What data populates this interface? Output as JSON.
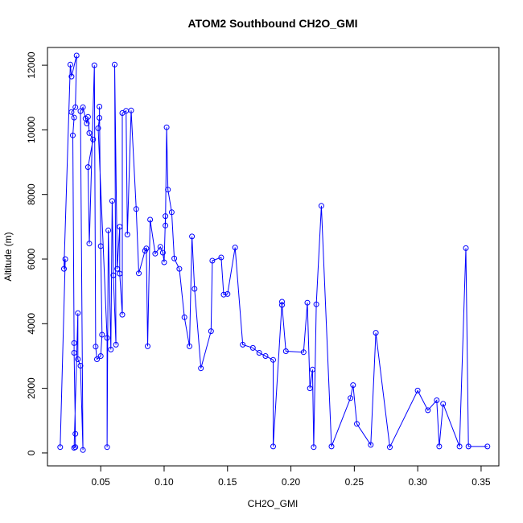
{
  "chart_data": {
    "type": "line",
    "title": "ATOM2 Southbound CH2O_GMI",
    "xlabel": "CH2O_GMI",
    "ylabel": "Altitude (m)",
    "xlim": [
      0.008,
      0.364
    ],
    "ylim": [
      -400,
      12550
    ],
    "x_ticks": [
      0.05,
      0.1,
      0.15,
      0.2,
      0.25,
      0.3,
      0.35
    ],
    "x_tick_labels": [
      "0.05",
      "0.10",
      "0.15",
      "0.20",
      "0.25",
      "0.30",
      "0.35"
    ],
    "y_ticks": [
      0,
      2000,
      4000,
      6000,
      8000,
      10000,
      12000
    ],
    "y_tick_labels": [
      "0",
      "2000",
      "4000",
      "6000",
      "8000",
      "10000",
      "12000"
    ],
    "grid": false,
    "marker": "open-circle",
    "series": [
      {
        "color": "#0000ff",
        "points": [
          [
            0.018,
            180
          ],
          [
            0.022,
            6000
          ],
          [
            0.021,
            5700
          ],
          [
            0.026,
            12020
          ],
          [
            0.027,
            11650
          ],
          [
            0.031,
            12300
          ],
          [
            0.03,
            10700
          ],
          [
            0.027,
            10550
          ],
          [
            0.029,
            10380
          ],
          [
            0.028,
            9830
          ],
          [
            0.029,
            3400
          ],
          [
            0.029,
            3100
          ],
          [
            0.03,
            590
          ],
          [
            0.03,
            180
          ],
          [
            0.029,
            160
          ],
          [
            0.032,
            4330
          ],
          [
            0.032,
            2900
          ],
          [
            0.034,
            2700
          ],
          [
            0.036,
            90
          ],
          [
            0.034,
            10580
          ],
          [
            0.036,
            10700
          ],
          [
            0.038,
            10350
          ],
          [
            0.039,
            10200
          ],
          [
            0.04,
            10400
          ],
          [
            0.041,
            9900
          ],
          [
            0.044,
            9700
          ],
          [
            0.04,
            8850
          ],
          [
            0.041,
            6480
          ],
          [
            0.045,
            12000
          ],
          [
            0.046,
            3290
          ],
          [
            0.047,
            2900
          ],
          [
            0.05,
            3000
          ],
          [
            0.051,
            3660
          ],
          [
            0.05,
            6400
          ],
          [
            0.049,
            10720
          ],
          [
            0.049,
            10370
          ],
          [
            0.048,
            10050
          ],
          [
            0.055,
            3560
          ],
          [
            0.055,
            180
          ],
          [
            0.056,
            6890
          ],
          [
            0.058,
            3200
          ],
          [
            0.059,
            7800
          ],
          [
            0.06,
            5500
          ],
          [
            0.062,
            3350
          ],
          [
            0.061,
            12020
          ],
          [
            0.063,
            5700
          ],
          [
            0.065,
            7000
          ],
          [
            0.065,
            5550
          ],
          [
            0.067,
            4280
          ],
          [
            0.067,
            10520
          ],
          [
            0.07,
            10590
          ],
          [
            0.071,
            6760
          ],
          [
            0.074,
            10600
          ],
          [
            0.078,
            7550
          ],
          [
            0.08,
            5560
          ],
          [
            0.085,
            6260
          ],
          [
            0.086,
            6330
          ],
          [
            0.087,
            3300
          ],
          [
            0.089,
            7220
          ],
          [
            0.093,
            6170
          ],
          [
            0.097,
            6380
          ],
          [
            0.099,
            6200
          ],
          [
            0.1,
            5900
          ],
          [
            0.101,
            7330
          ],
          [
            0.101,
            7040
          ],
          [
            0.102,
            10080
          ],
          [
            0.103,
            8150
          ],
          [
            0.106,
            7450
          ],
          [
            0.108,
            6020
          ],
          [
            0.112,
            5700
          ],
          [
            0.116,
            4200
          ],
          [
            0.12,
            3300
          ],
          [
            0.122,
            6700
          ],
          [
            0.124,
            5080
          ],
          [
            0.129,
            2620
          ],
          [
            0.137,
            3770
          ],
          [
            0.138,
            5950
          ],
          [
            0.145,
            6050
          ],
          [
            0.147,
            4900
          ],
          [
            0.15,
            4920
          ],
          [
            0.156,
            6360
          ],
          [
            0.162,
            3350
          ],
          [
            0.17,
            3250
          ],
          [
            0.175,
            3100
          ],
          [
            0.18,
            3000
          ],
          [
            0.186,
            2880
          ],
          [
            0.186,
            200
          ],
          [
            0.193,
            4680
          ],
          [
            0.193,
            4580
          ],
          [
            0.196,
            3150
          ],
          [
            0.21,
            3120
          ],
          [
            0.213,
            4650
          ],
          [
            0.215,
            2000
          ],
          [
            0.217,
            2580
          ],
          [
            0.218,
            180
          ],
          [
            0.22,
            4600
          ],
          [
            0.224,
            7650
          ],
          [
            0.232,
            200
          ],
          [
            0.247,
            1700
          ],
          [
            0.249,
            2100
          ],
          [
            0.252,
            900
          ],
          [
            0.263,
            250
          ],
          [
            0.267,
            3720
          ],
          [
            0.278,
            180
          ],
          [
            0.3,
            1930
          ],
          [
            0.308,
            1320
          ],
          [
            0.315,
            1630
          ],
          [
            0.317,
            200
          ],
          [
            0.32,
            1520
          ],
          [
            0.333,
            200
          ],
          [
            0.338,
            6340
          ],
          [
            0.34,
            200
          ],
          [
            0.355,
            200
          ]
        ]
      }
    ]
  }
}
